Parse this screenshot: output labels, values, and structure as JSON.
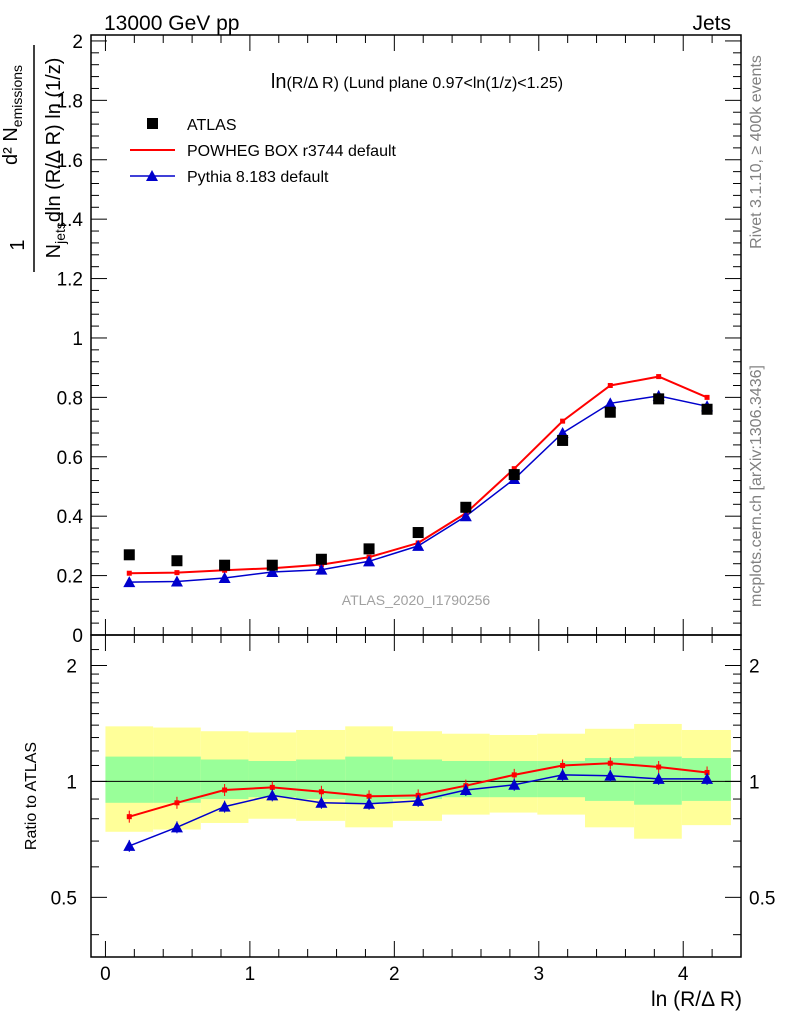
{
  "header": {
    "left": "13000 GeV pp",
    "right": "Jets"
  },
  "side_text": {
    "rivet": "Rivet 3.1.10, ≥ 400k events",
    "mcplots": "mcplots.cern.ch [arXiv:1306.3436]"
  },
  "chart_data": [
    {
      "type": "scatter",
      "title": "ln(R/Δ R) (Lund plane 0.97<ln(1/z)<1.25)",
      "title_parts": {
        "main": "ln",
        "sub": "(R/Δ R) (Lund plane 0.97<ln(1/z)<1.25)"
      },
      "watermark": "ATLAS_2020_I1790256",
      "ylabel": {
        "frac_one": "1",
        "n_jets_N": "N",
        "n_jets_sub": "jets",
        "denominator_rest": "dln (R/Δ R) ln (1/z)",
        "numerator_d2N": "d² N",
        "numerator_sub": "emissions"
      },
      "xlim": [
        -0.1,
        4.4
      ],
      "ylim": [
        0,
        2.02
      ],
      "yticks": [
        "0",
        "0.2",
        "0.4",
        "0.6",
        "0.8",
        "1",
        "1.2",
        "1.4",
        "1.6",
        "1.8",
        "2"
      ],
      "grid": false,
      "legend_position": "top-left",
      "x": [
        0.165,
        0.495,
        0.825,
        1.155,
        1.495,
        1.825,
        2.165,
        2.495,
        2.83,
        3.165,
        3.495,
        3.83,
        4.165
      ],
      "series": [
        {
          "name": "ATLAS",
          "marker": "square",
          "color": "#000000",
          "values": [
            0.27,
            0.25,
            0.235,
            0.235,
            0.255,
            0.29,
            0.345,
            0.43,
            0.54,
            0.655,
            0.75,
            0.795,
            0.76
          ]
        },
        {
          "name": "POWHEG BOX r3744 default",
          "marker": "line",
          "color": "#ff0000",
          "values": [
            0.208,
            0.21,
            0.218,
            0.225,
            0.237,
            0.262,
            0.31,
            0.41,
            0.56,
            0.72,
            0.84,
            0.87,
            0.8
          ]
        },
        {
          "name": "Pythia 8.183 default",
          "marker": "triangle",
          "color": "#0000cc",
          "values": [
            0.178,
            0.18,
            0.192,
            0.212,
            0.22,
            0.248,
            0.3,
            0.4,
            0.525,
            0.68,
            0.78,
            0.805,
            0.77
          ]
        }
      ]
    },
    {
      "type": "line",
      "ylabel": "Ratio to ATLAS",
      "xlabel": "ln (R/Δ R)",
      "xlim": [
        -0.1,
        4.4
      ],
      "ylim": [
        0.35,
        2.4
      ],
      "xticks": [
        "0",
        "1",
        "2",
        "3",
        "4"
      ],
      "yticks": [
        "0.5",
        "1",
        "2"
      ],
      "reference_line": 1,
      "bins": [
        0.0,
        0.33,
        0.66,
        0.99,
        1.32,
        1.66,
        1.99,
        2.33,
        2.66,
        2.99,
        3.32,
        3.66,
        3.99,
        4.33
      ],
      "bands": {
        "yellow_color": "#ffff99",
        "green_color": "#99ff99",
        "yellow": [
          [
            0.74,
            1.39
          ],
          [
            0.75,
            1.38
          ],
          [
            0.78,
            1.35
          ],
          [
            0.8,
            1.34
          ],
          [
            0.79,
            1.36
          ],
          [
            0.76,
            1.39
          ],
          [
            0.79,
            1.35
          ],
          [
            0.82,
            1.33
          ],
          [
            0.83,
            1.32
          ],
          [
            0.82,
            1.33
          ],
          [
            0.76,
            1.37
          ],
          [
            0.71,
            1.41
          ],
          [
            0.77,
            1.36
          ]
        ],
        "green": [
          [
            0.88,
            1.16
          ],
          [
            0.88,
            1.16
          ],
          [
            0.9,
            1.14
          ],
          [
            0.91,
            1.13
          ],
          [
            0.9,
            1.14
          ],
          [
            0.88,
            1.16
          ],
          [
            0.9,
            1.14
          ],
          [
            0.91,
            1.13
          ],
          [
            0.91,
            1.13
          ],
          [
            0.91,
            1.13
          ],
          [
            0.89,
            1.15
          ],
          [
            0.87,
            1.16
          ],
          [
            0.89,
            1.15
          ]
        ]
      },
      "x": [
        0.165,
        0.495,
        0.825,
        1.155,
        1.495,
        1.825,
        2.165,
        2.495,
        2.83,
        3.165,
        3.495,
        3.83,
        4.165
      ],
      "series": [
        {
          "name": "POWHEG BOX r3744 default",
          "color": "#ff0000",
          "values": [
            0.81,
            0.88,
            0.95,
            0.965,
            0.94,
            0.915,
            0.92,
            0.975,
            1.04,
            1.1,
            1.115,
            1.09,
            1.055
          ]
        },
        {
          "name": "Pythia 8.183 default",
          "color": "#0000cc",
          "values": [
            0.68,
            0.76,
            0.86,
            0.92,
            0.88,
            0.875,
            0.89,
            0.95,
            0.98,
            1.04,
            1.035,
            1.015,
            1.015
          ]
        }
      ]
    }
  ]
}
